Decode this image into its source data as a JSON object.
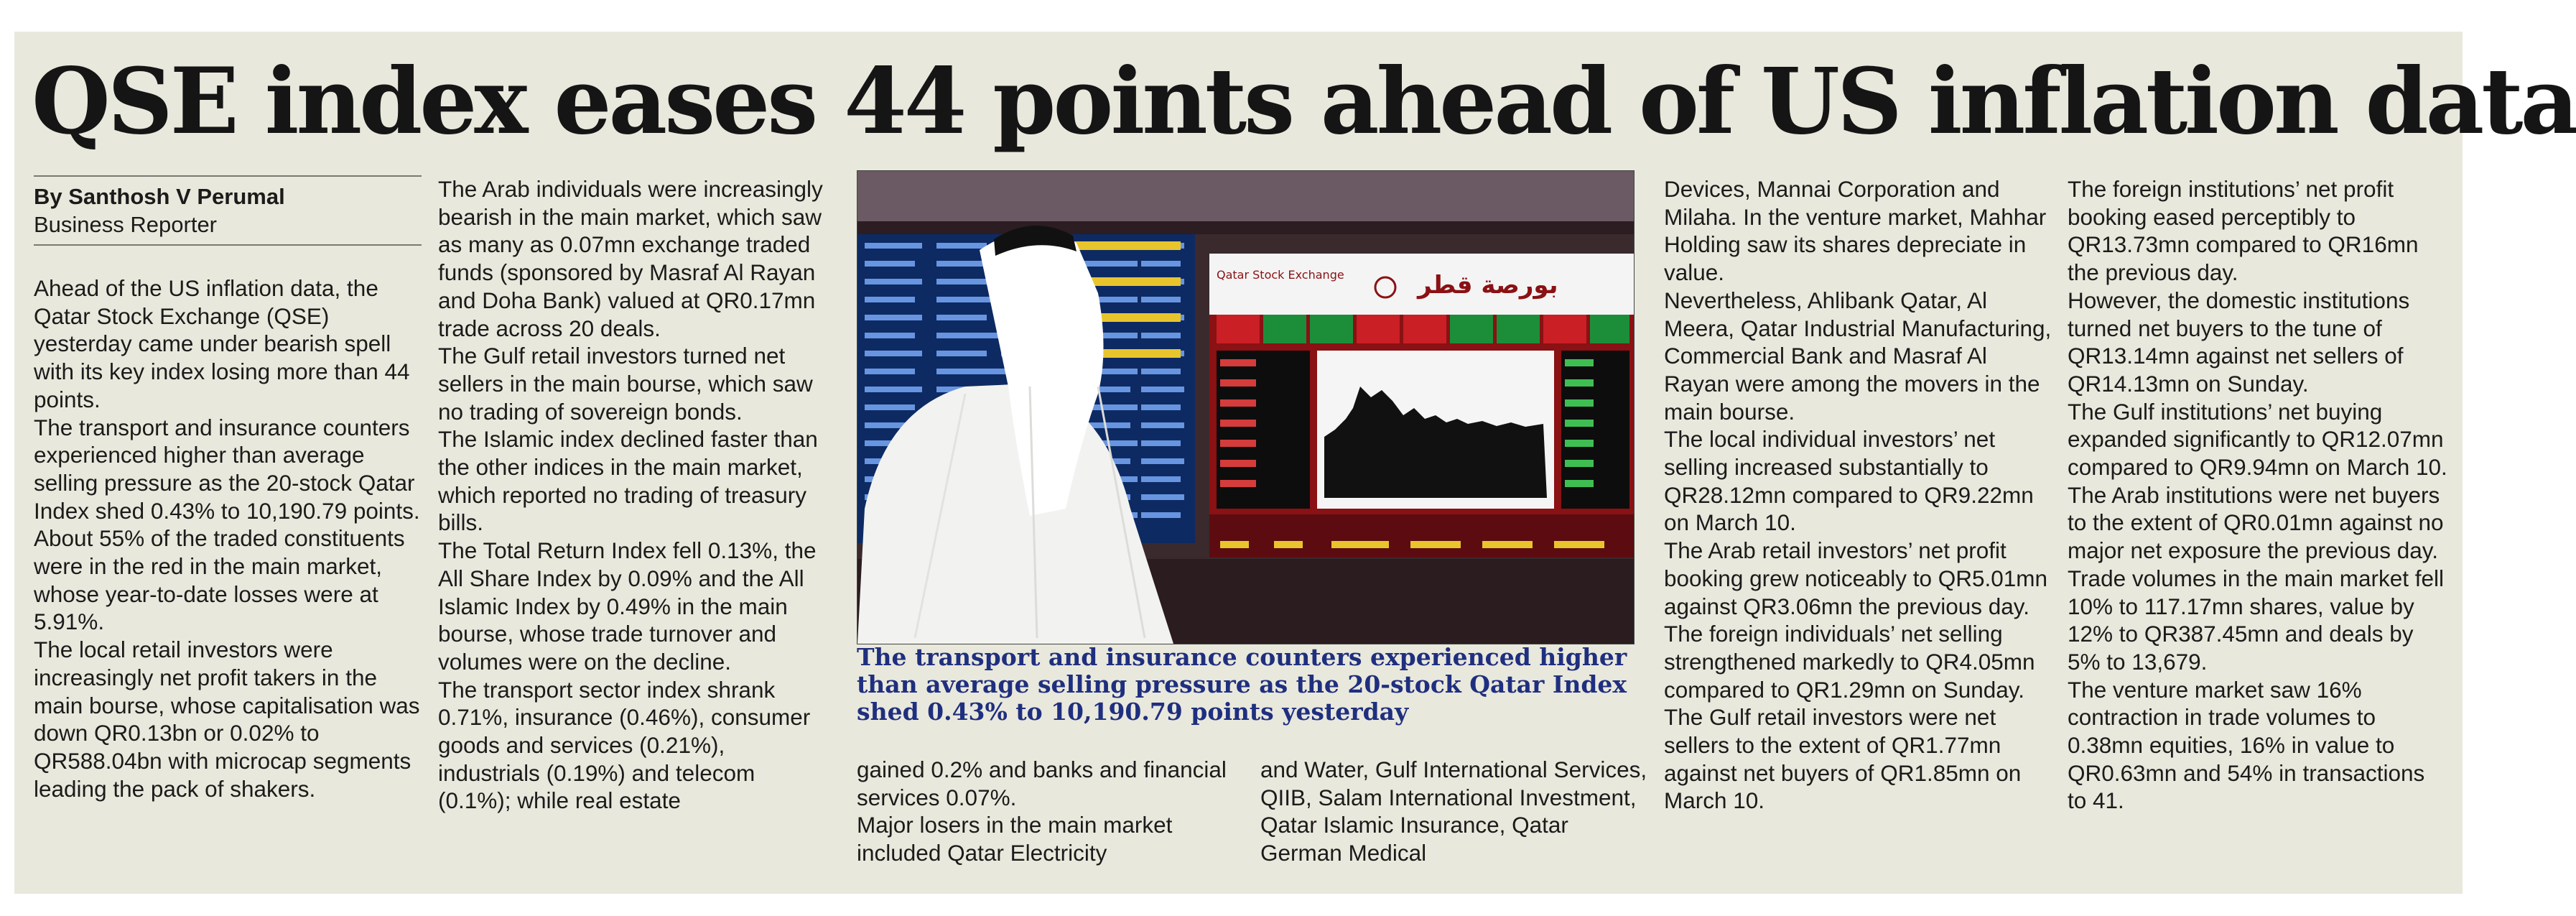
{
  "headline": "QSE index eases 44 points ahead of US inflation data",
  "byline": {
    "author": "By Santhosh V Perumal",
    "role": "Business Reporter"
  },
  "columns": [
    [
      "Ahead of the US inflation data, the Qatar Stock Exchange (QSE) yesterday came under bearish spell with its key index losing more than 44 points.",
      "The transport and insurance counters experienced higher than average selling pressure as the 20-stock Qatar Index shed 0.43% to 10,190.79 points.",
      "About 55% of the traded constituents were in the red in the main market, whose year-to-date losses were at 5.91%.",
      "The local retail investors were increasingly net profit takers in the main bourse, whose capitalisation was down QR0.13bn or 0.02% to QR588.04bn with microcap segments leading the pack of shakers."
    ],
    [
      "The Arab individuals were increasingly bearish in the main market, which saw as many as 0.07mn exchange traded funds (sponsored by Masraf Al Rayan and Doha Bank) valued at QR0.17mn trade across 20 deals.",
      "The Gulf retail investors turned net sellers in the main bourse, which saw no trading of sovereign bonds.",
      "The Islamic index declined faster than the other indices in the main market, which reported no trading of treasury bills.",
      "The Total Return Index fell 0.13%, the All Share Index by 0.09% and the All Islamic Index by 0.49% in the main bourse, whose trade turnover and volumes were on the decline.",
      "The transport sector index shrank 0.71%, insurance (0.46%), consumer goods and services (0.21%), industrials (0.19%) and telecom (0.1%); while real estate"
    ],
    [
      "gained 0.2% and banks and financial services 0.07%.",
      "Major losers in the main market included Qatar Electricity"
    ],
    [
      "and Water, Gulf International Services, QIIB, Salam International Investment, Qatar Islamic Insurance, Qatar German Medical"
    ],
    [
      "Devices, Mannai Corporation and Milaha. In the venture market, Mahhar Holding saw its shares depreciate in value.",
      "Nevertheless, Ahlibank Qatar, Al Meera, Qatar Industrial Manufacturing, Commercial Bank and Masraf Al Rayan were among the movers in the main bourse.",
      "The local individual investors’ net selling increased substantially to QR28.12mn compared to QR9.22mn on March 10.",
      "The Arab retail investors’ net profit booking grew noticeably to QR5.01mn against QR3.06mn the previous day.",
      "The foreign individuals’ net selling strengthened markedly to QR4.05mn compared to QR1.29mn on Sunday.",
      "The Gulf retail investors were net sellers to the extent of QR1.77mn against net buyers of QR1.85mn on March 10."
    ],
    [
      "The foreign institutions’ net profit booking eased perceptibly to QR13.73mn compared to QR16mn the previous day.",
      "However, the domestic institutions turned net buyers to the tune of QR13.14mn against net sellers of QR14.13mn on Sunday.",
      "The Gulf institutions’ net buying expanded significantly to QR12.07mn compared to QR9.94mn on March 10.",
      "The Arab institutions were net buyers to the extent of QR0.01mn against no major net exposure the previous day.",
      "Trade volumes in the main market fell 10% to 117.17mn shares, value by 12% to QR387.45mn and deals by 5% to 13,679.",
      "The venture market saw 16% contraction in trade volumes to 0.38mn equities, 16% in value to QR0.63mn and 54% in transactions to 41."
    ]
  ],
  "photo": {
    "board_title": "Qatar Stock Exchange",
    "board_title_ar": "بورصة قطر",
    "caption": "The transport and insurance counters experienced higher than average selling pressure as the 20-stock Qatar Index shed 0.43% to 10,190.79 points yesterday"
  }
}
